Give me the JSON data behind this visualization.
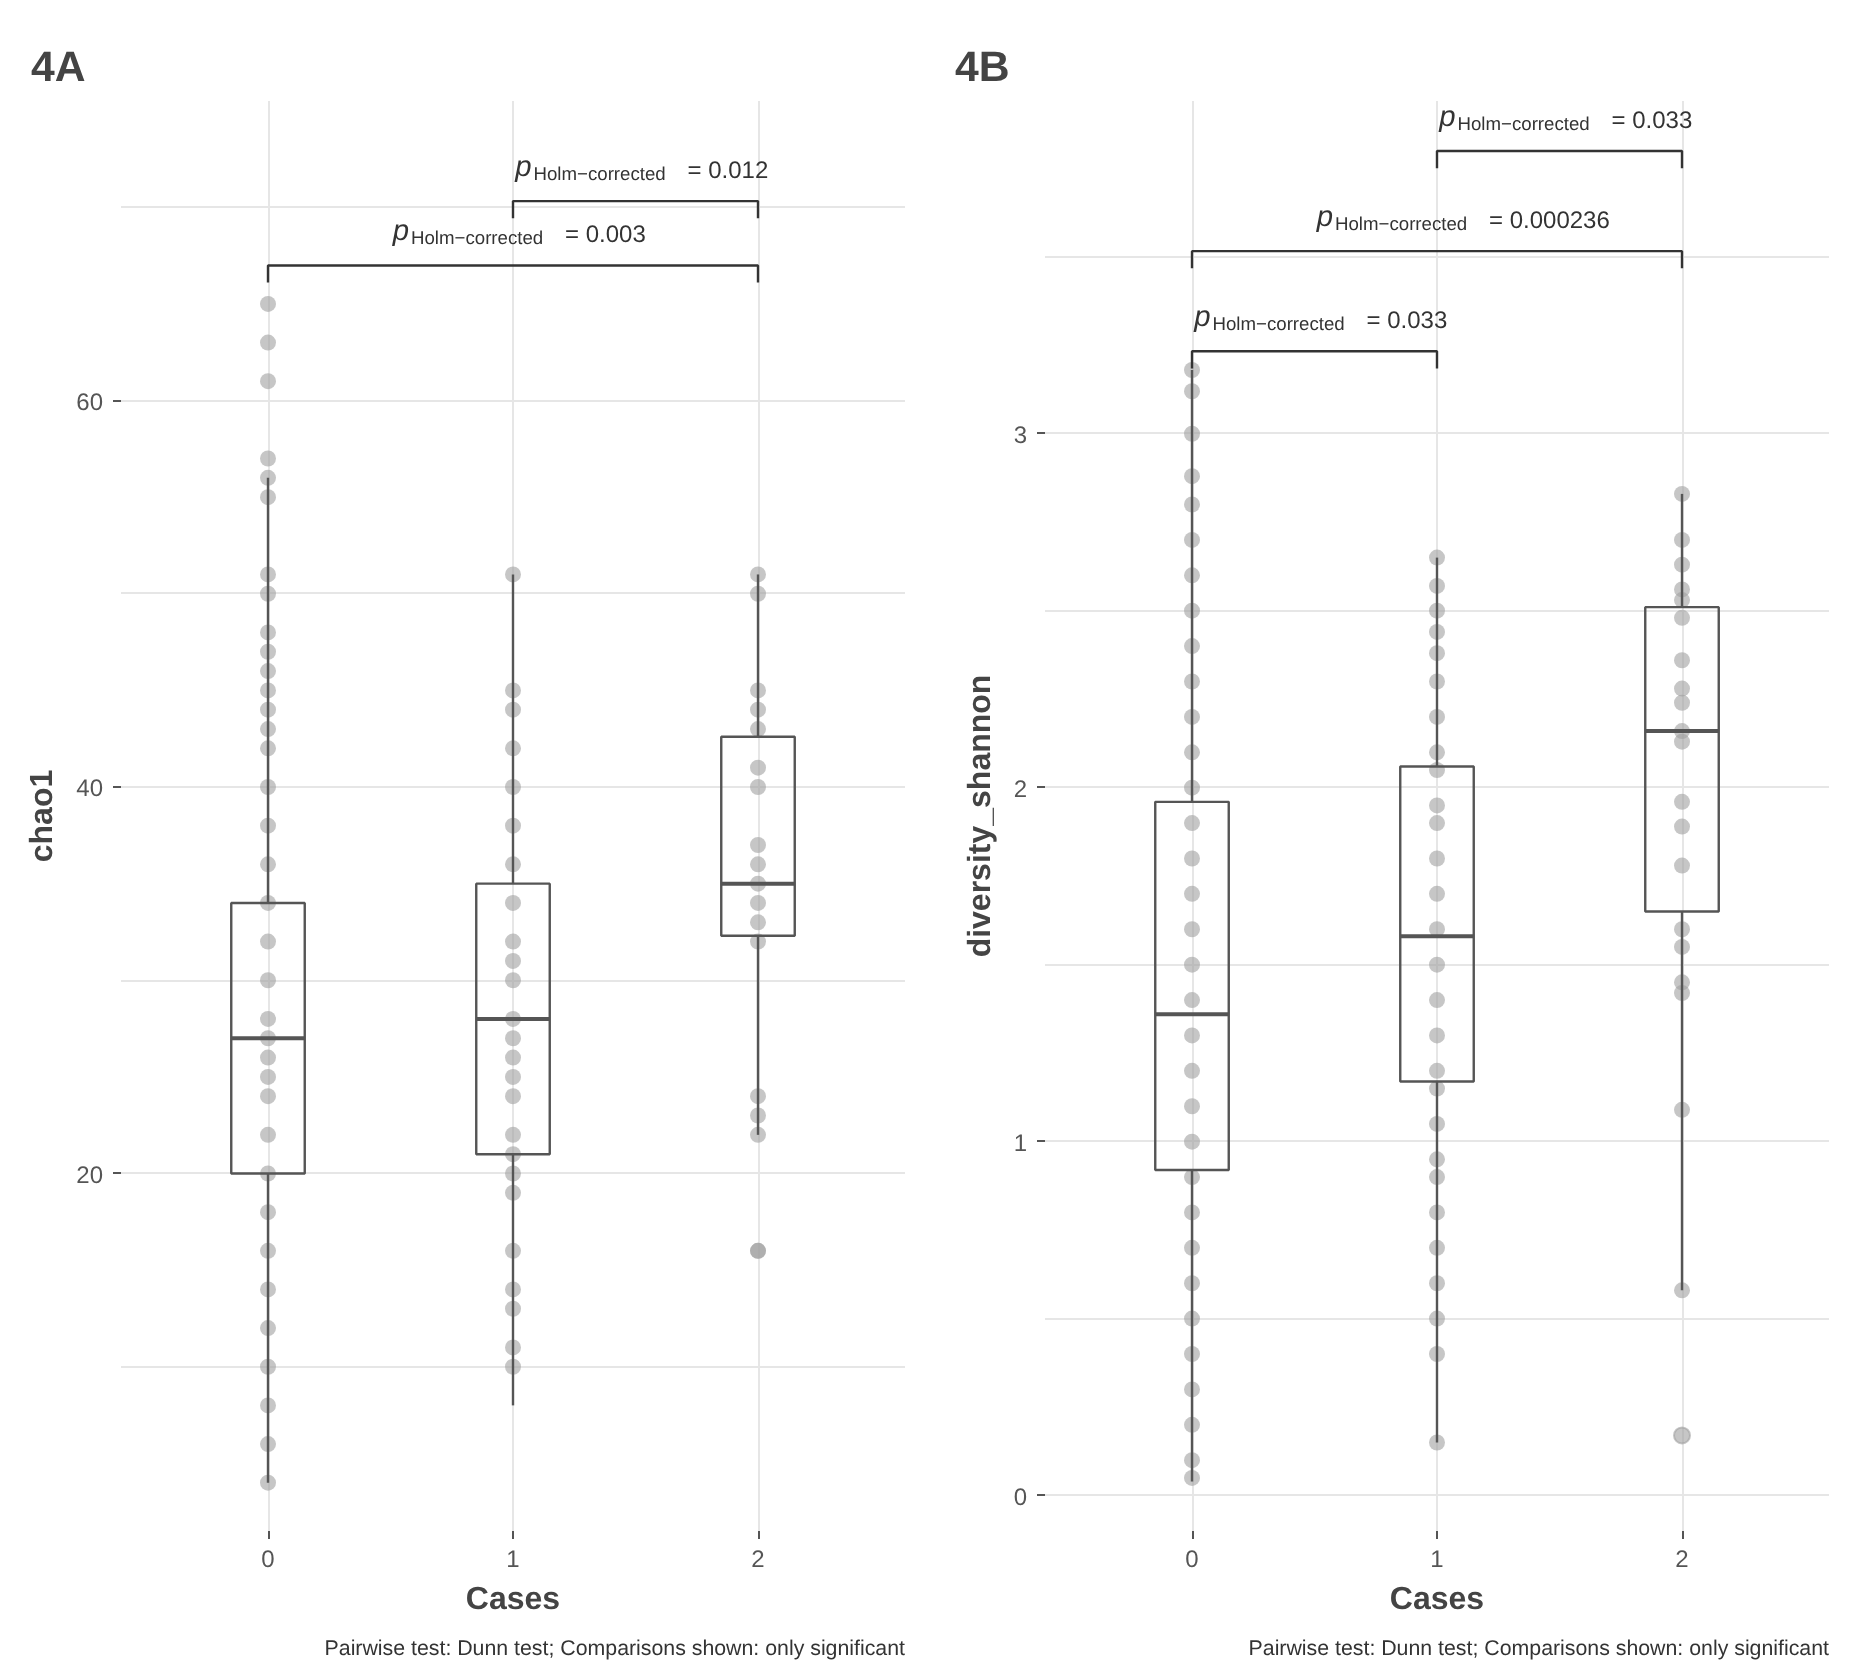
{
  "chart_data": [
    {
      "type": "box",
      "title": "4A",
      "xlabel": "Cases",
      "ylabel": "chao1",
      "categories": [
        "0",
        "1",
        "2"
      ],
      "ylim": [
        1.5,
        75.5
      ],
      "yticks": [
        {
          "value": 10,
          "label": null
        },
        20,
        {
          "value": 30,
          "label": null
        },
        40,
        {
          "value": 50,
          "label": null
        },
        60,
        {
          "value": 70,
          "label": null
        }
      ],
      "grid": true,
      "boxes": [
        {
          "low": 4,
          "q1": 20,
          "median": 27,
          "q3": 34,
          "high": 56
        },
        {
          "low": 8,
          "q1": 21,
          "median": 28,
          "q3": 35,
          "high": 51
        },
        {
          "low": 22,
          "q1": 32.3,
          "median": 35,
          "q3": 42.6,
          "high": 51
        }
      ],
      "series": [
        {
          "type": "scatter",
          "color": "#a0a0a0",
          "x": [
            "0",
            "0",
            "0",
            "0",
            "0",
            "0",
            "0",
            "0",
            "0",
            "0",
            "0",
            "0",
            "0",
            "0",
            "0",
            "0",
            "0",
            "0",
            "0",
            "0",
            "0",
            "0",
            "0",
            "0",
            "0",
            "0",
            "0",
            "0",
            "0",
            "0",
            "0",
            "0",
            "0",
            "0",
            "0",
            "0",
            "1",
            "1",
            "1",
            "1",
            "1",
            "1",
            "1",
            "1",
            "1",
            "1",
            "1",
            "1",
            "1",
            "1",
            "1",
            "1",
            "1",
            "1",
            "1",
            "1",
            "1",
            "1",
            "1",
            "1",
            "1",
            "2",
            "2",
            "2",
            "2",
            "2",
            "2",
            "2",
            "2",
            "2",
            "2",
            "2",
            "2",
            "2",
            "2",
            "2",
            "2",
            "2",
            "2"
          ],
          "values": [
            65,
            63,
            61,
            57,
            56,
            55,
            51,
            50,
            48,
            47,
            46,
            45,
            44,
            43,
            42,
            40,
            38,
            36,
            34,
            32,
            30,
            28,
            27,
            26,
            25,
            24,
            22,
            20,
            18,
            16,
            14,
            12,
            10,
            8,
            6,
            4,
            51,
            45,
            44,
            42,
            40,
            38,
            36,
            34,
            32,
            31,
            30,
            28,
            27,
            26,
            25,
            24,
            22,
            21,
            20,
            19,
            16,
            14,
            13,
            11,
            10,
            51,
            50,
            45,
            44,
            43,
            41,
            40,
            37,
            36,
            35,
            34,
            33,
            32,
            24,
            23,
            22,
            16,
            16
          ]
        }
      ],
      "annotations": [
        "p$_{Holm−corrected}$ = 0.012",
        "p$_{Holm−corrected}$ = 0.003",
        "Pairwise test: Dunn test; Comparisons shown: only significant"
      ]
    },
    {
      "type": "box",
      "title": "4B",
      "xlabel": "Cases",
      "ylabel": "diversity_shannon",
      "categories": [
        "0",
        "1",
        "2"
      ],
      "ylim": [
        -0.1,
        3.94
      ],
      "yticks": [
        0,
        {
          "value": 0.5,
          "label": null
        },
        1,
        {
          "value": 1.5,
          "label": null
        },
        2,
        {
          "value": 2.5,
          "label": null
        },
        3,
        {
          "value": 3.5,
          "label": null
        }
      ],
      "grid": true,
      "boxes": [
        {
          "low": 0.04,
          "q1": 0.92,
          "median": 1.36,
          "q3": 1.96,
          "high": 3.18
        },
        {
          "low": 0.15,
          "q1": 1.17,
          "median": 1.58,
          "q3": 2.06,
          "high": 2.65
        },
        {
          "low": 0.58,
          "q1": 1.65,
          "median": 2.16,
          "q3": 2.51,
          "high": 2.83,
          "outliers": [
            0.17
          ]
        }
      ],
      "series": [
        {
          "type": "scatter",
          "color": "#a0a0a0",
          "x": [
            "0",
            "0",
            "0",
            "0",
            "0",
            "0",
            "0",
            "0",
            "0",
            "0",
            "0",
            "0",
            "0",
            "0",
            "0",
            "0",
            "0",
            "0",
            "0",
            "0",
            "0",
            "0",
            "0",
            "0",
            "0",
            "0",
            "0",
            "0",
            "0",
            "0",
            "0",
            "0",
            "0",
            "1",
            "1",
            "1",
            "1",
            "1",
            "1",
            "1",
            "1",
            "1",
            "1",
            "1",
            "1",
            "1",
            "1",
            "1",
            "1",
            "1",
            "1",
            "1",
            "1",
            "1",
            "1",
            "1",
            "1",
            "1",
            "1",
            "1",
            "1",
            "2",
            "2",
            "2",
            "2",
            "2",
            "2",
            "2",
            "2",
            "2",
            "2",
            "2",
            "2",
            "2",
            "2",
            "2",
            "2",
            "2",
            "2",
            "2",
            "2"
          ],
          "values": [
            3.18,
            3.12,
            3.0,
            2.88,
            2.8,
            2.7,
            2.6,
            2.5,
            2.4,
            2.3,
            2.2,
            2.1,
            2.0,
            1.9,
            1.8,
            1.7,
            1.6,
            1.5,
            1.4,
            1.3,
            1.2,
            1.1,
            1.0,
            0.9,
            0.8,
            0.7,
            0.6,
            0.5,
            0.4,
            0.3,
            0.2,
            0.1,
            0.05,
            2.65,
            2.57,
            2.5,
            2.44,
            2.38,
            2.3,
            2.2,
            2.1,
            2.05,
            1.95,
            1.9,
            1.8,
            1.7,
            1.6,
            1.5,
            1.4,
            1.3,
            1.2,
            1.15,
            1.05,
            0.95,
            0.9,
            0.8,
            0.7,
            0.6,
            0.5,
            0.4,
            0.15,
            2.83,
            2.7,
            2.63,
            2.56,
            2.53,
            2.48,
            2.36,
            2.28,
            2.24,
            2.16,
            2.13,
            1.96,
            1.89,
            1.78,
            1.6,
            1.55,
            1.45,
            1.42,
            1.09,
            0.58
          ]
        }
      ],
      "annotations": [
        "p$_{Holm−corrected}$ = 0.033",
        "p$_{Holm−corrected}$ = 0.000236",
        "p$_{Holm−corrected}$ = 0.033",
        "Pairwise test: Dunn test; Comparisons shown: only significant"
      ]
    }
  ]
}
